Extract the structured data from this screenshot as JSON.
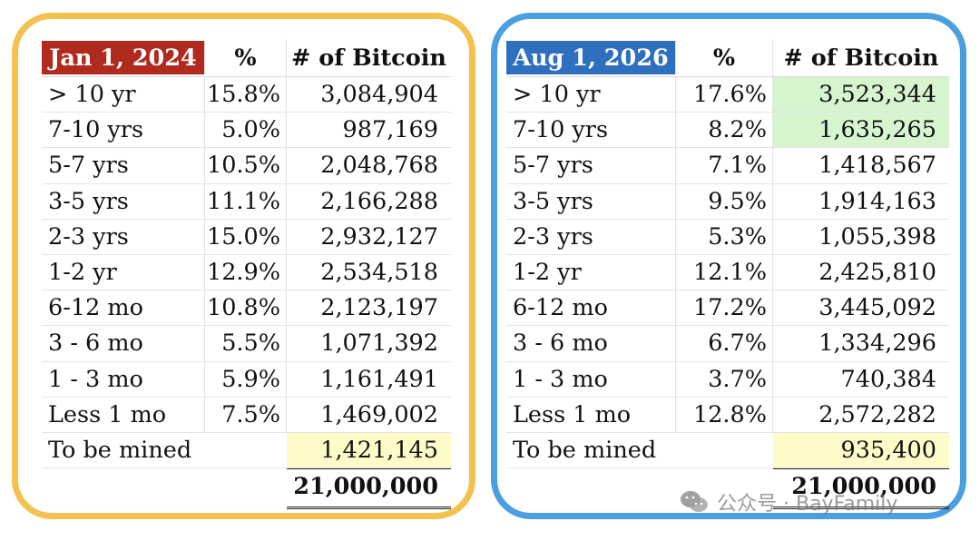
{
  "left": {
    "date": "Jan 1, 2024",
    "pct_header": "%",
    "num_header": "# of Bitcoin",
    "rows": [
      {
        "label": "> 10 yr",
        "pct": "15.8%",
        "num": "3,084,904"
      },
      {
        "label": "7-10 yrs",
        "pct": "5.0%",
        "num": "987,169"
      },
      {
        "label": "5-7 yrs",
        "pct": "10.5%",
        "num": "2,048,768"
      },
      {
        "label": "3-5 yrs",
        "pct": "11.1%",
        "num": "2,166,288"
      },
      {
        "label": "2-3 yrs",
        "pct": "15.0%",
        "num": "2,932,127"
      },
      {
        "label": "1-2 yr",
        "pct": "12.9%",
        "num": "2,534,518"
      },
      {
        "label": "6-12 mo",
        "pct": "10.8%",
        "num": "2,123,197"
      },
      {
        "label": "3 - 6 mo",
        "pct": "5.5%",
        "num": "1,071,392"
      },
      {
        "label": "1 - 3 mo",
        "pct": "5.9%",
        "num": "1,161,491"
      },
      {
        "label": "Less 1 mo",
        "pct": "7.5%",
        "num": "1,469,002"
      }
    ],
    "mined_label": "To be mined",
    "mined_num": "1,421,145",
    "total": "21,000,000",
    "border_color": "#f2c14e",
    "badge_color": "#b02a1e"
  },
  "right": {
    "date": "Aug 1, 2026",
    "pct_header": "%",
    "num_header": "# of Bitcoin",
    "rows": [
      {
        "label": "> 10 yr",
        "pct": "17.6%",
        "num": "3,523,344"
      },
      {
        "label": "7-10 yrs",
        "pct": "8.2%",
        "num": "1,635,265"
      },
      {
        "label": "5-7 yrs",
        "pct": "7.1%",
        "num": "1,418,567"
      },
      {
        "label": "3-5 yrs",
        "pct": "9.5%",
        "num": "1,914,163"
      },
      {
        "label": "2-3 yrs",
        "pct": "5.3%",
        "num": "1,055,398"
      },
      {
        "label": "1-2 yr",
        "pct": "12.1%",
        "num": "2,425,810"
      },
      {
        "label": "6-12 mo",
        "pct": "17.2%",
        "num": "3,445,092"
      },
      {
        "label": "3 - 6 mo",
        "pct": "6.7%",
        "num": "1,334,296"
      },
      {
        "label": "1 - 3 mo",
        "pct": "3.7%",
        "num": "740,384"
      },
      {
        "label": "Less 1 mo",
        "pct": "12.8%",
        "num": "2,572,282"
      }
    ],
    "mined_label": "To be mined",
    "mined_num": "935,400",
    "total": "21,000,000",
    "border_color": "#4a9fe0",
    "badge_color": "#2f6fbf"
  },
  "highlight_colors": {
    "yellow": "#fffbc9",
    "green": "#d6f5cf"
  },
  "watermark": {
    "text": "公众号 · BayFamily",
    "icon": "wechat-icon"
  }
}
